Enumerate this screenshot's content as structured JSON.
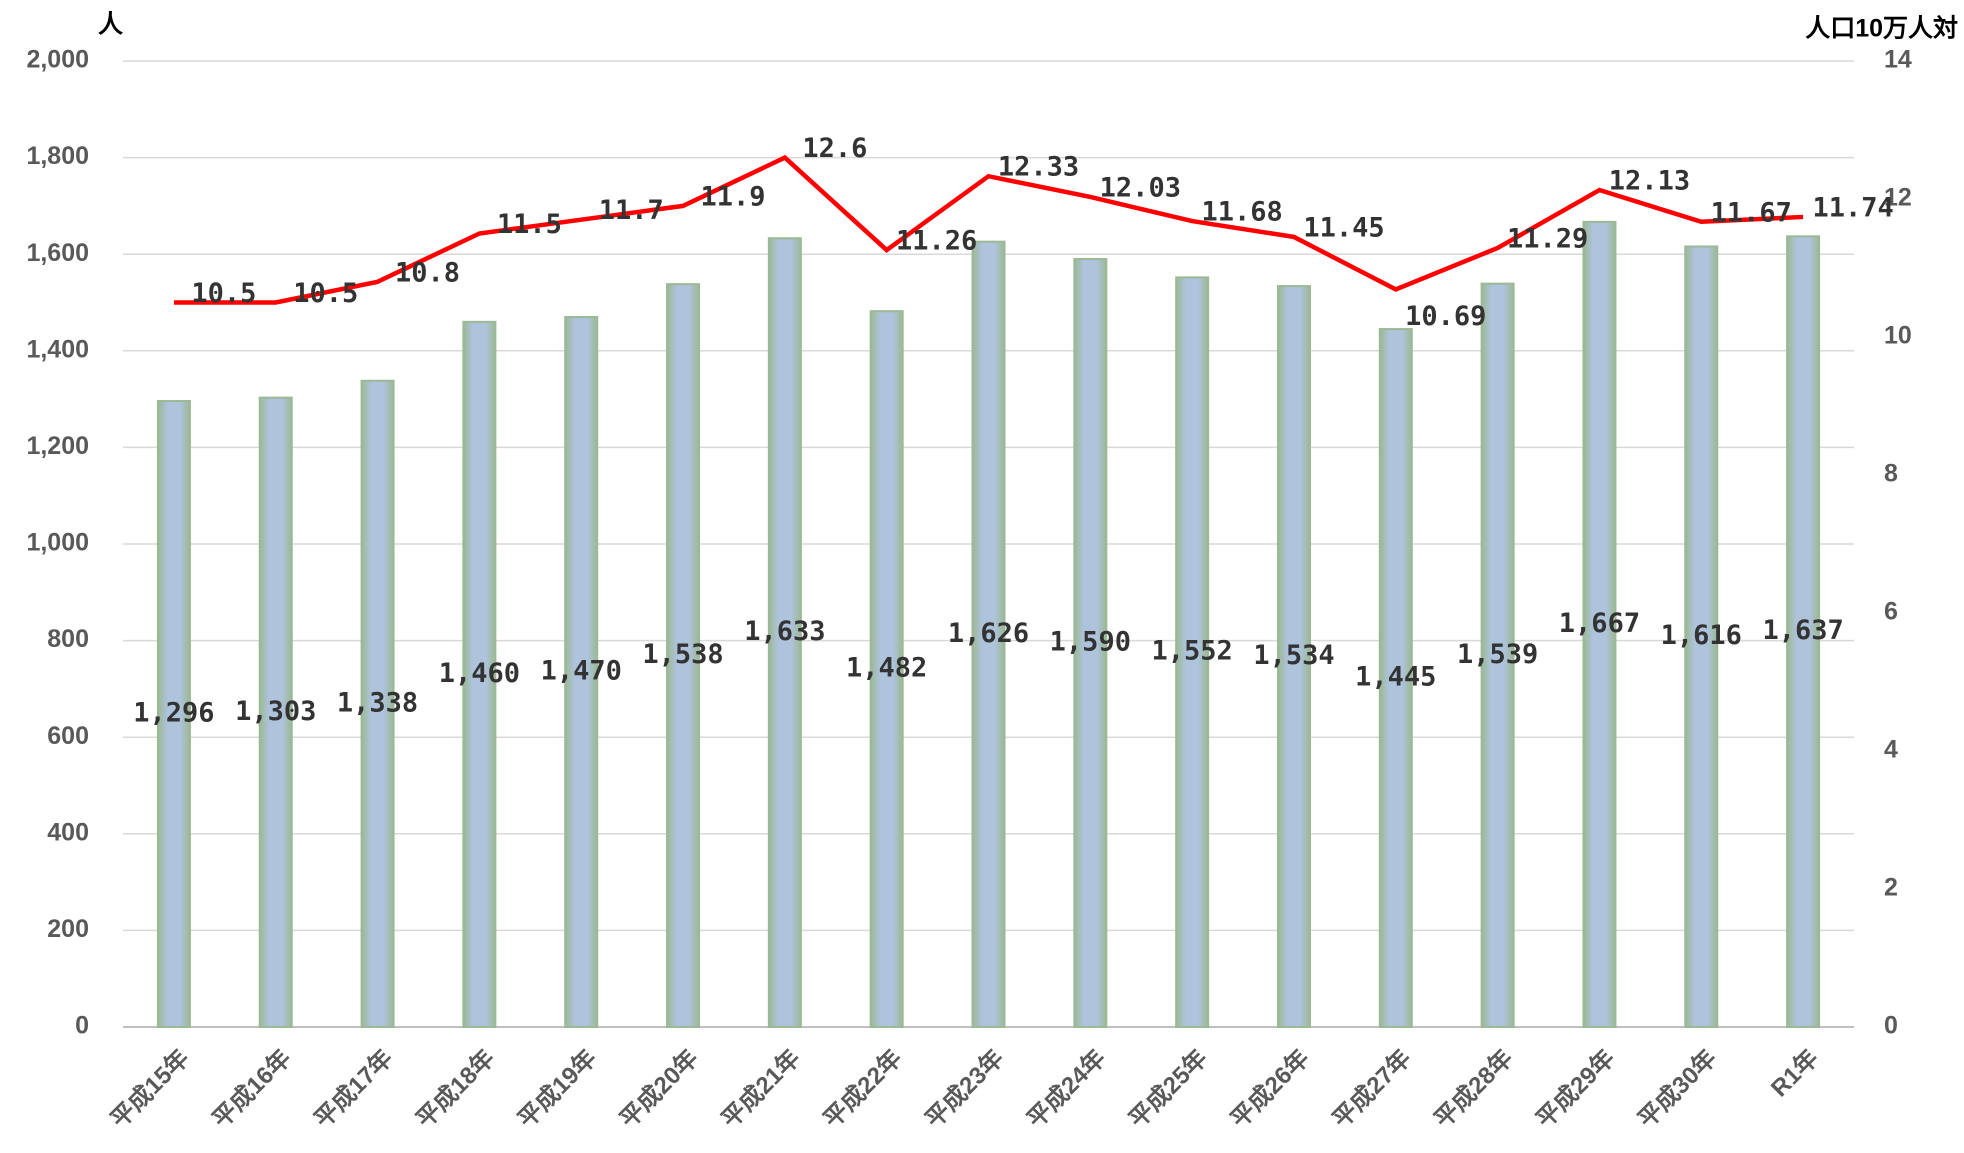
{
  "chart_data": {
    "type": "bar-line",
    "y_label": "人",
    "y2_label": "人口10万人対",
    "categories": [
      "平成15年",
      "平成16年",
      "平成17年",
      "平成18年",
      "平成19年",
      "平成20年",
      "平成21年",
      "平成22年",
      "平成23年",
      "平成24年",
      "平成25年",
      "平成26年",
      "平成27年",
      "平成28年",
      "平成29年",
      "平成30年",
      "R1年"
    ],
    "series": [
      {
        "type": "bar",
        "color": "#a9bfd9",
        "values": [
          1296,
          1303,
          1338,
          1460,
          1470,
          1538,
          1633,
          1482,
          1626,
          1590,
          1552,
          1534,
          1445,
          1539,
          1667,
          1616,
          1637
        ],
        "value_labels": [
          "1,296",
          "1,303",
          "1,338",
          "1,460",
          "1,470",
          "1,538",
          "1,633",
          "1,482",
          "1,626",
          "1,590",
          "1,552",
          "1,534",
          "1,445",
          "1,539",
          "1,667",
          "1,616",
          "1,637"
        ]
      },
      {
        "type": "line",
        "axis": "y2",
        "color": "#ff0000",
        "values": [
          10.5,
          10.5,
          10.8,
          11.5,
          11.7,
          11.9,
          12.6,
          11.26,
          12.33,
          12.03,
          11.68,
          11.45,
          10.69,
          11.29,
          12.13,
          11.67,
          11.74
        ]
      }
    ],
    "ylim": [
      0,
      2000
    ],
    "yticks": [
      0,
      200,
      400,
      600,
      800,
      {
        "value": 1000,
        "label": "1,000"
      },
      {
        "value": 1200,
        "label": "1,200"
      },
      {
        "value": 1400,
        "label": "1,400"
      },
      {
        "value": 1600,
        "label": "1,600"
      },
      {
        "value": 1800,
        "label": "1,800"
      },
      {
        "value": 2000,
        "label": "2,000"
      }
    ],
    "y2lim": [
      0,
      14
    ],
    "y2ticks": [
      0,
      2,
      4,
      6,
      8,
      10,
      12,
      14
    ],
    "grid": true
  }
}
